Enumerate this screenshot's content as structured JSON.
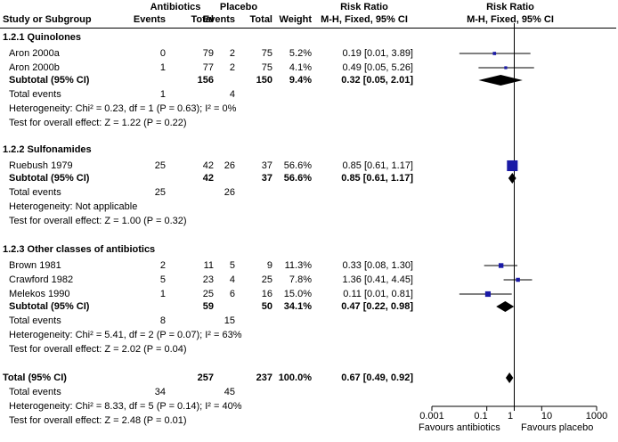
{
  "header": {
    "group1": "Antibiotics",
    "group2": "Placebo",
    "study_col": "Study or Subgroup",
    "events1": "Events",
    "total1": "Total",
    "events2": "Events",
    "total2": "Total",
    "weight": "Weight",
    "rr_title": "Risk Ratio",
    "rr_method": "M-H, Fixed, 95% CI",
    "plot_title": "Risk Ratio",
    "plot_method": "M-H, Fixed, 95% CI"
  },
  "chart_data": {
    "type": "forest",
    "x_scale": "log",
    "x_ticks": [
      "0.001",
      "0.1",
      "1",
      "10",
      "1000"
    ],
    "x_tick_values": [
      0.001,
      0.1,
      1,
      10,
      1000
    ],
    "xlim": [
      0.001,
      1000
    ],
    "favours_left": "Favours antibiotics",
    "favours_right": "Favours placebo",
    "subgroups": [
      {
        "title": "1.2.1 Quinolones",
        "studies": [
          {
            "name": "Aron 2000a",
            "e1": "0",
            "t1": "79",
            "e2": "2",
            "t2": "75",
            "weight": "5.2%",
            "ci_text": "0.19 [0.01, 3.89]",
            "rr": 0.19,
            "lo": 0.01,
            "hi": 3.89
          },
          {
            "name": "Aron 2000b",
            "e1": "1",
            "t1": "77",
            "e2": "2",
            "t2": "75",
            "weight": "4.1%",
            "ci_text": "0.49 [0.05, 5.26]",
            "rr": 0.49,
            "lo": 0.05,
            "hi": 5.26
          }
        ],
        "subtotal": {
          "label": "Subtotal (95% CI)",
          "t1": "156",
          "t2": "150",
          "weight": "9.4%",
          "ci_text": "0.32 [0.05, 2.01]",
          "rr": 0.32,
          "lo": 0.05,
          "hi": 2.01
        },
        "total_events": {
          "label": "Total events",
          "e1": "1",
          "e2": "4"
        },
        "heterogeneity": "Heterogeneity: Chi² = 0.23, df = 1 (P = 0.63); I² = 0%",
        "overall_test": "Test for overall effect: Z = 1.22 (P = 0.22)"
      },
      {
        "title": "1.2.2 Sulfonamides",
        "studies": [
          {
            "name": "Ruebush 1979",
            "e1": "25",
            "t1": "42",
            "e2": "26",
            "t2": "37",
            "weight": "56.6%",
            "ci_text": "0.85 [0.61, 1.17]",
            "rr": 0.85,
            "lo": 0.61,
            "hi": 1.17
          }
        ],
        "subtotal": {
          "label": "Subtotal (95% CI)",
          "t1": "42",
          "t2": "37",
          "weight": "56.6%",
          "ci_text": "0.85 [0.61, 1.17]",
          "rr": 0.85,
          "lo": 0.61,
          "hi": 1.17
        },
        "total_events": {
          "label": "Total events",
          "e1": "25",
          "e2": "26"
        },
        "heterogeneity": "Heterogeneity: Not applicable",
        "overall_test": "Test for overall effect: Z = 1.00 (P = 0.32)"
      },
      {
        "title": "1.2.3 Other classes of antibiotics",
        "studies": [
          {
            "name": "Brown 1981",
            "e1": "2",
            "t1": "11",
            "e2": "5",
            "t2": "9",
            "weight": "11.3%",
            "ci_text": "0.33 [0.08, 1.30]",
            "rr": 0.33,
            "lo": 0.08,
            "hi": 1.3
          },
          {
            "name": "Crawford 1982",
            "e1": "5",
            "t1": "23",
            "e2": "4",
            "t2": "25",
            "weight": "7.8%",
            "ci_text": "1.36 [0.41, 4.45]",
            "rr": 1.36,
            "lo": 0.41,
            "hi": 4.45
          },
          {
            "name": "Melekos 1990",
            "e1": "1",
            "t1": "25",
            "e2": "6",
            "t2": "16",
            "weight": "15.0%",
            "ci_text": "0.11 [0.01, 0.81]",
            "rr": 0.11,
            "lo": 0.01,
            "hi": 0.81
          }
        ],
        "subtotal": {
          "label": "Subtotal (95% CI)",
          "t1": "59",
          "t2": "50",
          "weight": "34.1%",
          "ci_text": "0.47 [0.22, 0.98]",
          "rr": 0.47,
          "lo": 0.22,
          "hi": 0.98
        },
        "total_events": {
          "label": "Total events",
          "e1": "8",
          "e2": "15"
        },
        "heterogeneity": "Heterogeneity: Chi² = 5.41, df = 2 (P = 0.07); I² = 63%",
        "overall_test": "Test for overall effect: Z = 2.02 (P = 0.04)"
      }
    ],
    "total": {
      "label": "Total (95% CI)",
      "t1": "257",
      "t2": "237",
      "weight": "100.0%",
      "ci_text": "0.67 [0.49, 0.92]",
      "rr": 0.67,
      "lo": 0.49,
      "hi": 0.92,
      "total_events": {
        "label": "Total events",
        "e1": "34",
        "e2": "45"
      },
      "heterogeneity": "Heterogeneity: Chi² = 8.33, df = 5 (P = 0.14); I² = 40%",
      "overall_test": "Test for overall effect: Z = 2.48 (P = 0.01)"
    },
    "colors": {
      "study_marker": "#1a1aa6",
      "diamond": "#000000",
      "line": "#000000"
    }
  }
}
